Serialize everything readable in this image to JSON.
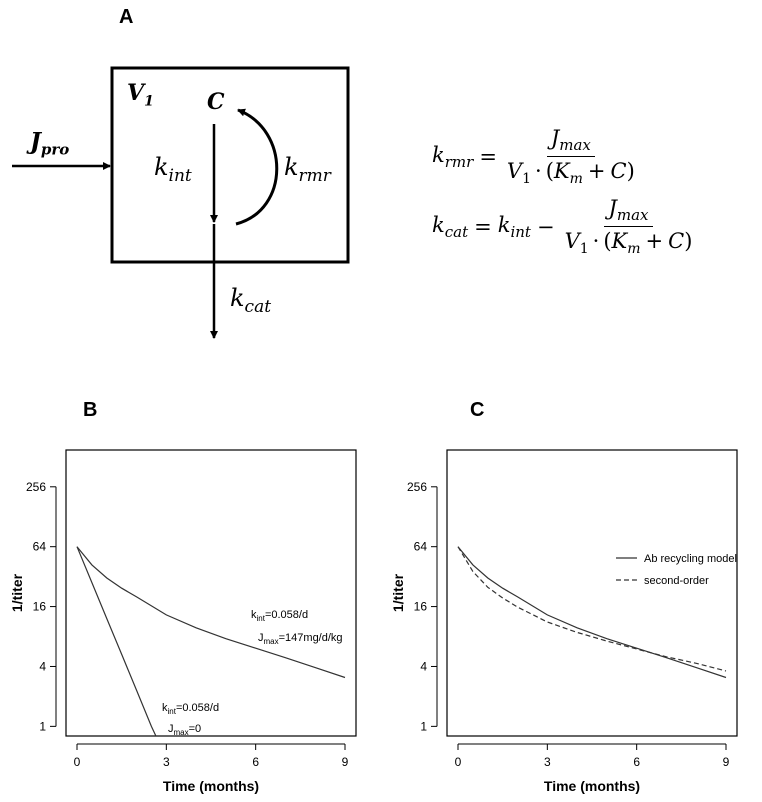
{
  "panel_labels": {
    "a": "A",
    "b": "B",
    "c": "C"
  },
  "diagram": {
    "volume": {
      "main": "V",
      "sub": "1"
    },
    "concentration": "C",
    "input": {
      "main": "J",
      "sub": "pro"
    },
    "internalization": {
      "main": "k",
      "sub": "int"
    },
    "recycling": {
      "main": "k",
      "sub": "rmr"
    },
    "catabolism": {
      "main": "k",
      "sub": "cat"
    }
  },
  "equations": {
    "krmr": {
      "lhs_main": "k",
      "lhs_sub": "rmr",
      "num_main": "J",
      "num_sub": "max",
      "den_v": "V",
      "den_v_sub": "1",
      "den_dot": "·",
      "den_k": "K",
      "den_k_sub": "m",
      "den_plus": "+",
      "den_c": "C"
    },
    "kcat": {
      "lhs_main": "k",
      "lhs_sub": "cat",
      "rhs_k": "k",
      "rhs_k_sub": "int",
      "minus": "−",
      "num_main": "J",
      "num_sub": "max",
      "den_v": "V",
      "den_v_sub": "1",
      "den_dot": "·",
      "den_k": "K",
      "den_k_sub": "m",
      "den_plus": "+",
      "den_c": "C"
    }
  },
  "chart_data": [
    {
      "type": "line",
      "panel": "B",
      "xlabel": "Time (months)",
      "ylabel": "1/titer",
      "xlim": [
        0,
        9
      ],
      "ylim": [
        0.8,
        600
      ],
      "y_scale": "log2",
      "xticks": [
        0,
        3,
        6,
        9
      ],
      "yticks": [
        1,
        4,
        16,
        64,
        256
      ],
      "grid": false,
      "series": [
        {
          "x": [
            0,
            0.5,
            1,
            1.5,
            2,
            3,
            4,
            5,
            6,
            7,
            8,
            9
          ],
          "y": [
            64,
            42,
            31,
            24.5,
            20,
            13.2,
            9.8,
            7.6,
            6.1,
            4.9,
            3.9,
            3.1
          ],
          "annotation": {
            "k_main": "k",
            "k_sub": "int",
            "k_val": "=0.058/d",
            "j_main": "J",
            "j_sub": "max",
            "j_val": "=147mg/d/kg"
          }
        },
        {
          "x": [
            0,
            0.5,
            1,
            1.5,
            2,
            2.5,
            2.65
          ],
          "y": [
            64,
            27.9,
            12.1,
            5.29,
            2.3,
            1.0,
            0.8
          ],
          "annotation": {
            "k_main": "k",
            "k_sub": "int",
            "k_val": "=0.058/d",
            "j_main": "J",
            "j_sub": "max",
            "j_val": "=0"
          }
        }
      ]
    },
    {
      "type": "line",
      "panel": "C",
      "xlabel": "Time (months)",
      "ylabel": "1/titer",
      "xlim": [
        0,
        9
      ],
      "ylim": [
        0.8,
        600
      ],
      "y_scale": "log2",
      "xticks": [
        0,
        3,
        6,
        9
      ],
      "yticks": [
        1,
        4,
        16,
        64,
        256
      ],
      "grid": false,
      "legend_position": "top-right",
      "series": [
        {
          "name": "Ab recycling model",
          "style": "solid",
          "x": [
            0,
            0.5,
            1,
            1.5,
            2,
            3,
            4,
            5,
            6,
            7,
            8,
            9
          ],
          "y": [
            64,
            42,
            31,
            24.5,
            20,
            13.2,
            9.8,
            7.6,
            6.1,
            4.9,
            3.9,
            3.1
          ]
        },
        {
          "name": "second-order",
          "style": "dashed",
          "x": [
            0,
            0.5,
            1,
            1.5,
            2,
            3,
            4,
            5,
            6,
            7,
            8,
            9
          ],
          "y": [
            64,
            36,
            25,
            19.5,
            15.8,
            11.2,
            8.8,
            7.2,
            6.0,
            5.0,
            4.3,
            3.6
          ]
        }
      ]
    }
  ]
}
